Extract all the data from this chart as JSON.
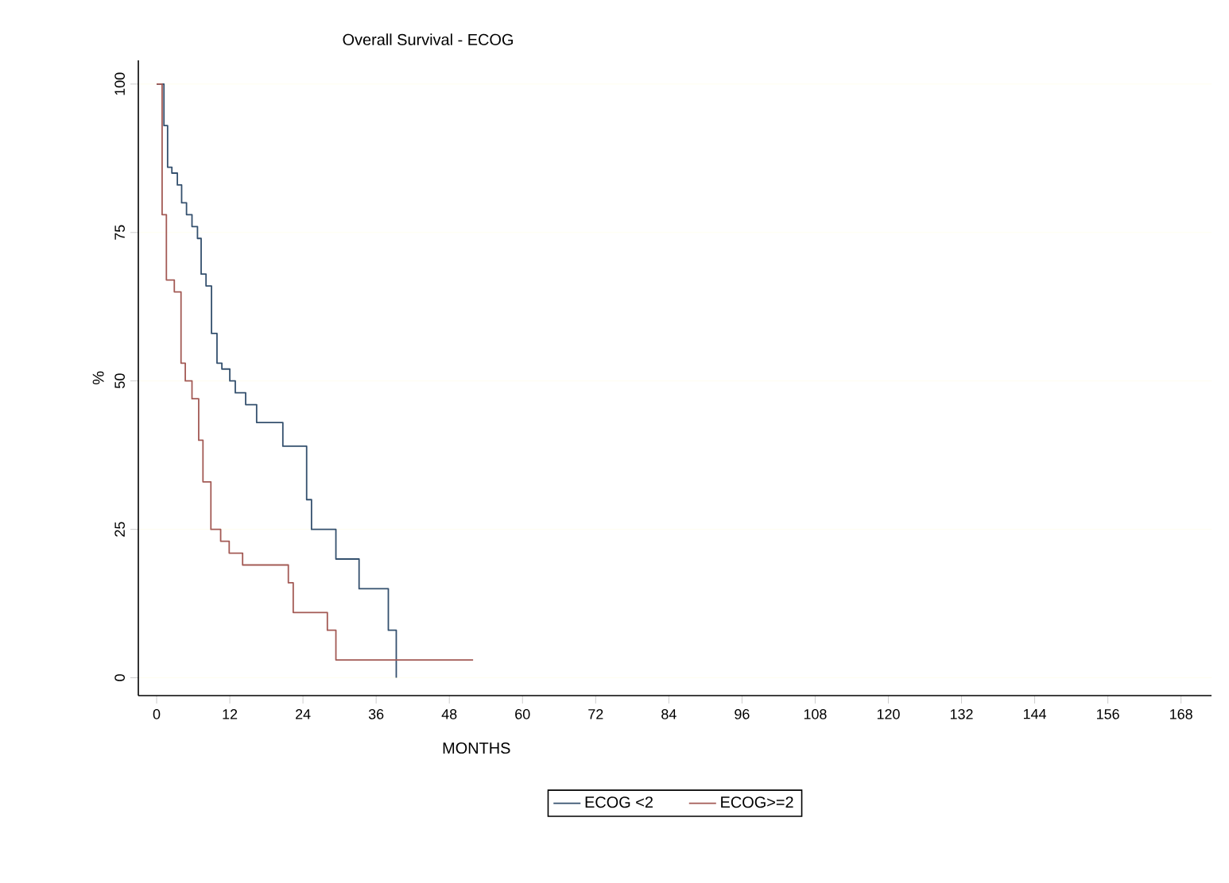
{
  "chart_data": {
    "type": "step",
    "title": "Overall Survival - ECOG",
    "xlabel": "MONTHS",
    "ylabel": "%",
    "xlim": [
      -3,
      173
    ],
    "xticks": [
      0,
      12,
      24,
      36,
      48,
      60,
      72,
      84,
      96,
      108,
      120,
      132,
      144,
      156,
      168
    ],
    "ylim": [
      -3,
      104
    ],
    "yticks": [
      0,
      25,
      50,
      75,
      100
    ],
    "grid": "y",
    "legend": "bottom",
    "line_style": "solid",
    "marker": "none",
    "series": [
      {
        "name": "ECOG <2",
        "color": "#34506e",
        "x": [
          0,
          1.2,
          1.8,
          2.5,
          3.4,
          4.1,
          4.9,
          5.8,
          6.7,
          7.3,
          8.1,
          9.0,
          9.9,
          10.7,
          12.0,
          12.9,
          14.6,
          16.4,
          20.7,
          24.6,
          25.4,
          29.4,
          33.2,
          38.0,
          39.3
        ],
        "values": [
          100,
          93,
          86,
          85,
          83,
          80,
          78,
          76,
          74,
          68,
          66,
          58,
          53,
          52,
          50,
          48,
          46,
          43,
          39,
          30,
          25,
          20,
          15,
          8,
          0
        ]
      },
      {
        "name": "ECOG>=2",
        "color": "#a35a55",
        "x": [
          0,
          0.9,
          1.6,
          2.9,
          4.0,
          4.7,
          5.8,
          6.9,
          7.6,
          8.9,
          10.5,
          11.9,
          14.1,
          21.6,
          22.4,
          28.0,
          29.4,
          51.9
        ],
        "values": [
          100,
          78,
          67,
          65,
          53,
          50,
          47,
          40,
          33,
          25,
          23,
          21,
          19,
          16,
          11,
          8,
          3,
          3
        ]
      }
    ]
  }
}
